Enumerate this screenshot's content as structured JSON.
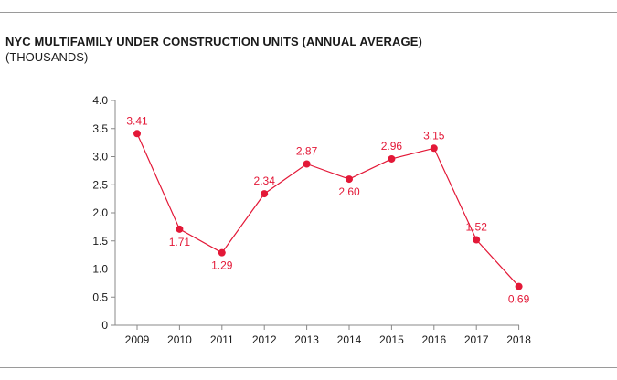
{
  "chart_data": {
    "type": "line",
    "title": "NYC MULTIFAMILY UNDER CONSTRUCTION UNITS (ANNUAL AVERAGE)",
    "subtitle": "(THOUSANDS)",
    "xlabel": "",
    "ylabel": "",
    "categories": [
      "2009",
      "2010",
      "2011",
      "2012",
      "2013",
      "2014",
      "2015",
      "2016",
      "2017",
      "2018"
    ],
    "values": [
      3.41,
      1.71,
      1.29,
      2.34,
      2.87,
      2.6,
      2.96,
      3.15,
      1.52,
      0.69
    ],
    "value_labels": [
      "3.41",
      "1.71",
      "1.29",
      "2.34",
      "2.87",
      "2.60",
      "2.96",
      "3.15",
      "1.52",
      "0.69"
    ],
    "label_positions": [
      "above",
      "below",
      "below",
      "above",
      "above",
      "below",
      "above",
      "above",
      "above",
      "below"
    ],
    "ylim": [
      0,
      4.0
    ],
    "yticks": [
      "0",
      "0.5",
      "1.0",
      "1.5",
      "2.0",
      "2.5",
      "3.0",
      "3.5",
      "4.0"
    ],
    "grid": false,
    "colors": {
      "series": "#e31837",
      "axis": "#888888",
      "text": "#1a1a1a"
    }
  }
}
